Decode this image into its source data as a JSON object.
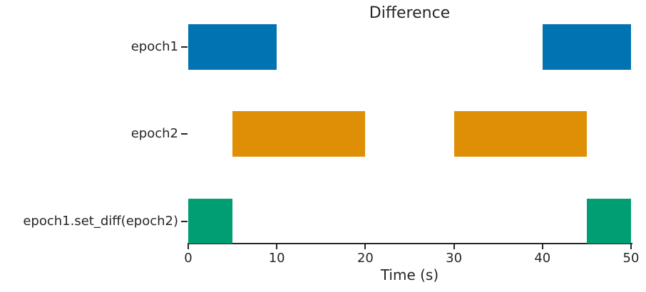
{
  "chart_data": {
    "type": "bar",
    "subtype": "horizontal-interval-timeline",
    "title": "Difference",
    "xlabel": "Time (s)",
    "ylabel": "",
    "xlim": [
      0,
      50
    ],
    "xticks": [
      0,
      10,
      20,
      30,
      40,
      50
    ],
    "grid": false,
    "legend": false,
    "categories": [
      "epoch1",
      "epoch2",
      "epoch1.set_diff(epoch2)"
    ],
    "rows": [
      {
        "label": "epoch1",
        "color": "#0173b2",
        "intervals": [
          [
            0,
            10
          ],
          [
            40,
            50
          ]
        ]
      },
      {
        "label": "epoch2",
        "color": "#de8f05",
        "intervals": [
          [
            5,
            20
          ],
          [
            30,
            45
          ]
        ]
      },
      {
        "label": "epoch1.set_diff(epoch2)",
        "color": "#029e73",
        "intervals": [
          [
            0,
            5
          ],
          [
            45,
            50
          ]
        ]
      }
    ],
    "colors": {
      "text": "#262626",
      "axis": "#262626",
      "background": "#ffffff"
    }
  }
}
